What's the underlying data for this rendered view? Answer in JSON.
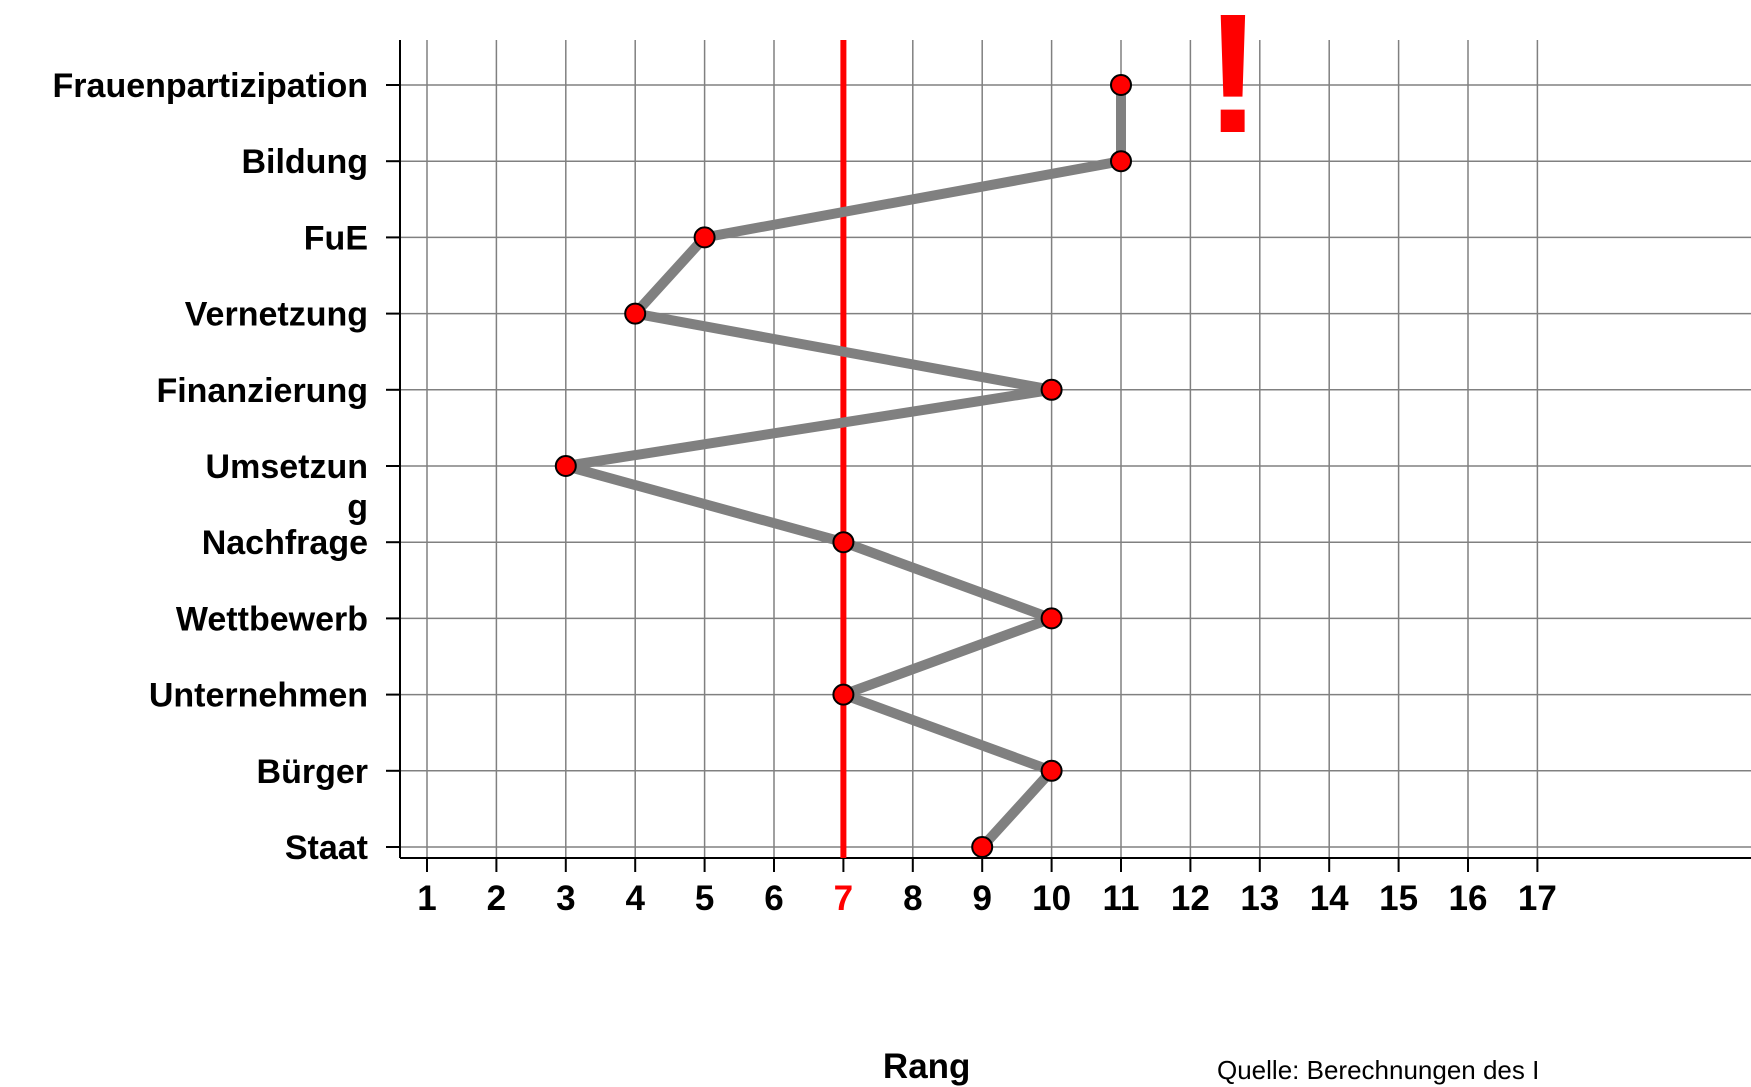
{
  "chart_data": {
    "type": "line",
    "orientation": "horizontal",
    "categories": [
      "Frauenpartizipation",
      "Bildung",
      "FuE",
      "Vernetzung",
      "Finanzierung",
      "Umsetzun\ng",
      "Nachfrage",
      "Wettbewerb",
      "Unternehmen",
      "Bürger",
      "Staat"
    ],
    "values": [
      11,
      11,
      5,
      4,
      10,
      3,
      7,
      10,
      7,
      10,
      9
    ],
    "x_ticks": [
      "1",
      "2",
      "3",
      "4",
      "5",
      "6",
      "7",
      "8",
      "9",
      "10",
      "11",
      "12",
      "13",
      "14",
      "15",
      "16",
      "17"
    ],
    "xlim": [
      1,
      17
    ],
    "xlabel": "Rang",
    "reference_line": {
      "value": 7
    },
    "annotation": "!",
    "source": "Quelle: Berechnungen des I",
    "grid": true,
    "colors": {
      "line": "#808080",
      "marker": "#ff0000",
      "reference": "#ff0000",
      "grid": "#808080"
    }
  }
}
